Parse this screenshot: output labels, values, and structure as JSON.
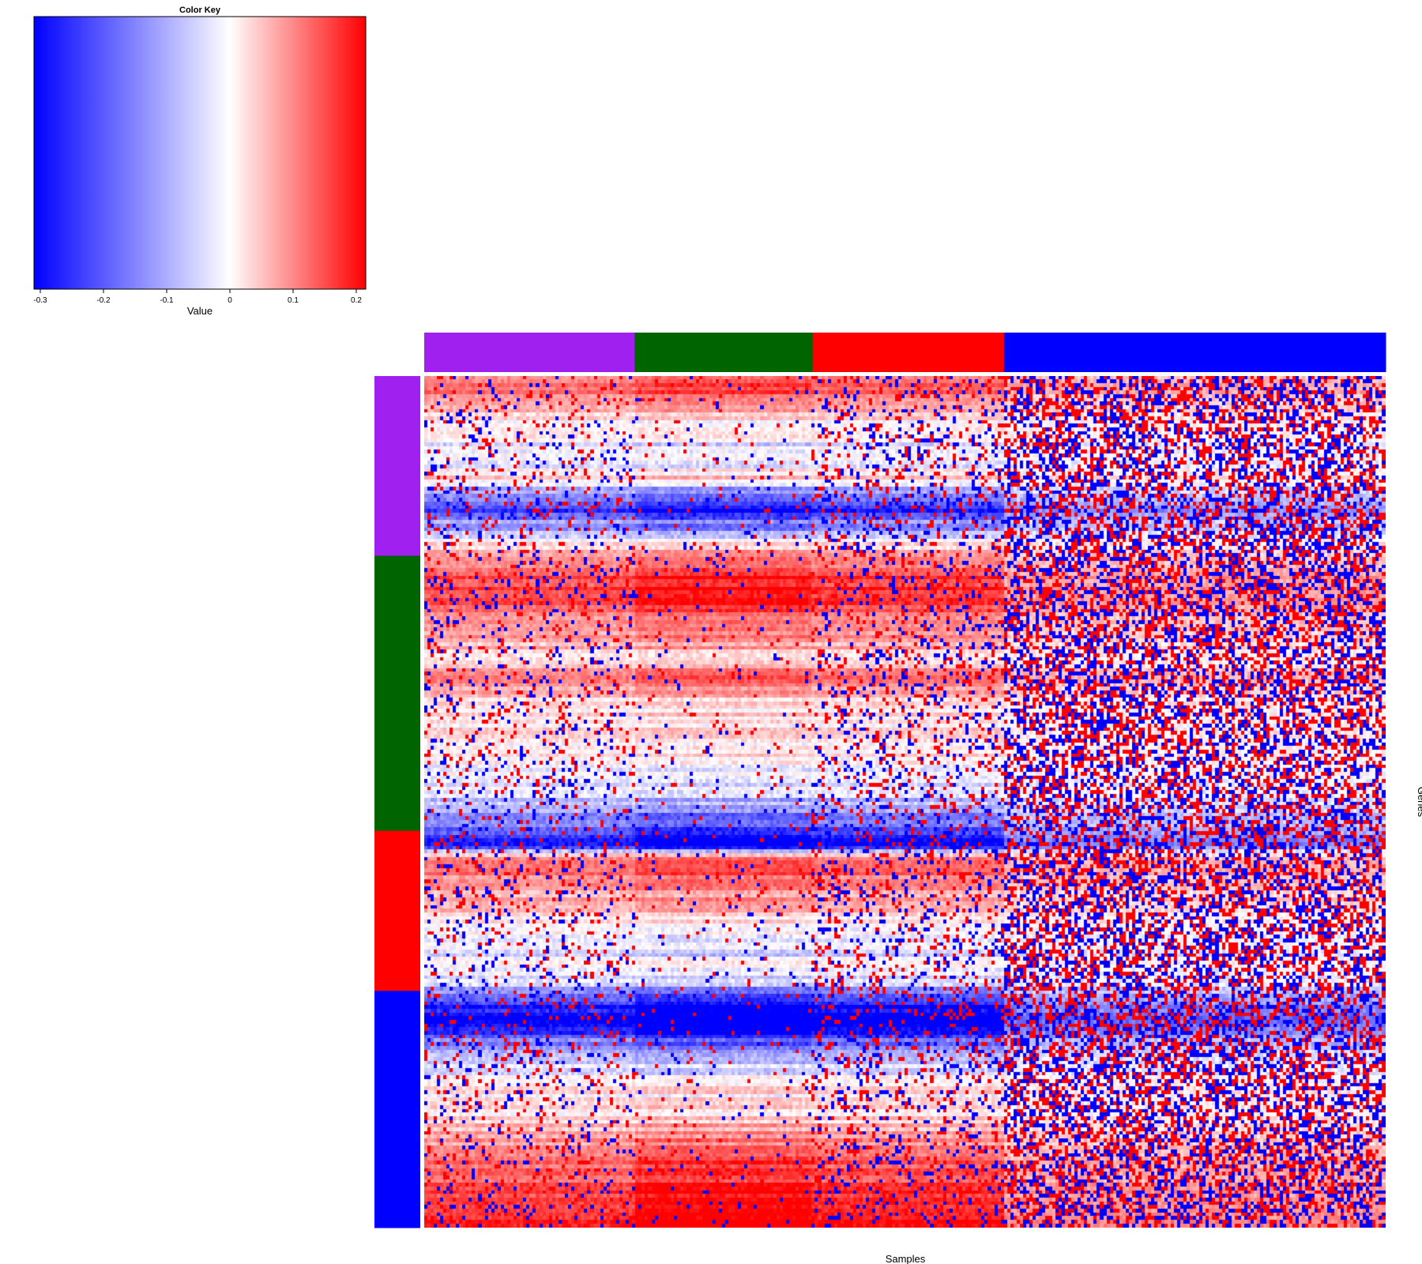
{
  "chart_data": {
    "type": "heatmap",
    "title": "",
    "xlabel": "Samples",
    "ylabel": "Genes",
    "color_key": {
      "title": "Color Key",
      "xlabel": "Value",
      "ticks": [
        "-0.3",
        "-0.2",
        "-0.1",
        "0",
        "0.1",
        "0.2"
      ],
      "tick_values": [
        -0.3,
        -0.2,
        -0.1,
        0,
        0.1,
        0.2
      ],
      "range": [
        -0.31,
        0.215
      ],
      "colors": {
        "low": "#0000ff",
        "mid": "#ffffff",
        "high": "#ff0000"
      }
    },
    "column_groups": [
      {
        "color": "#a020f0",
        "fraction": 0.219
      },
      {
        "color": "#006400",
        "fraction": 0.185
      },
      {
        "color": "#ff0000",
        "fraction": 0.199
      },
      {
        "color": "#0000ff",
        "fraction": 0.397
      }
    ],
    "row_groups": [
      {
        "color": "#a020f0",
        "fraction": 0.211
      },
      {
        "color": "#006400",
        "fraction": 0.323
      },
      {
        "color": "#ff0000",
        "fraction": 0.188
      },
      {
        "color": "#0000ff",
        "fraction": 0.278
      }
    ],
    "row_profile": [
      0.12,
      0.15,
      0.1,
      0.06,
      0.03,
      0.0,
      -0.02,
      -0.03,
      -0.01,
      0.05,
      -0.08,
      -0.15,
      -0.2,
      -0.12,
      -0.06,
      0.05,
      0.1,
      0.12,
      0.2,
      0.2,
      0.18,
      0.15,
      0.12,
      0.1,
      0.08,
      0.06,
      0.09,
      0.12,
      0.08,
      0.05,
      0.04,
      0.03,
      0.02,
      0.02,
      0.01,
      0.0,
      -0.02,
      -0.04,
      -0.06,
      -0.1,
      -0.15,
      -0.22,
      -0.24,
      0.12,
      0.15,
      0.12,
      0.1,
      0.08,
      0.04,
      0.02,
      0.0,
      -0.04,
      -0.02,
      0.0,
      -0.06,
      -0.1,
      -0.22,
      -0.28,
      -0.26,
      -0.2,
      -0.1,
      -0.05,
      -0.02,
      0.0,
      0.02,
      0.01,
      0.03,
      0.06,
      0.09,
      0.12,
      0.14,
      0.16,
      0.18,
      0.2,
      0.18,
      0.2,
      0.22
    ]
  }
}
